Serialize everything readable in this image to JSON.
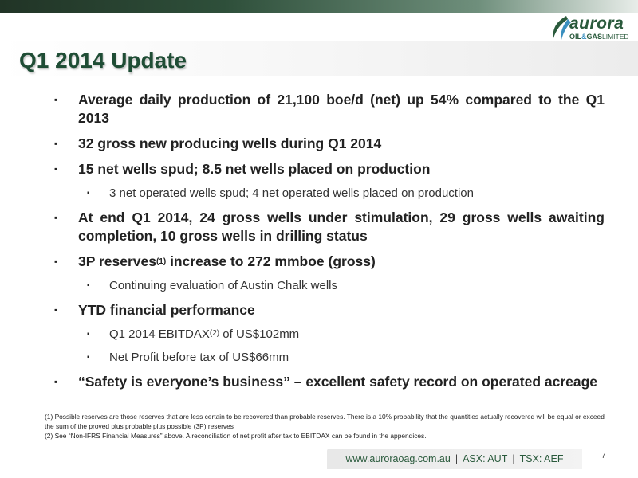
{
  "header": {
    "title": "Q1 2014 Update",
    "logo": {
      "word": "aurora",
      "sub_left": "OIL",
      "sub_amp": "&",
      "sub_mid": "GAS",
      "sub_right": "LIMITED"
    }
  },
  "bullets": [
    {
      "level": 1,
      "text": "Average daily production of 21,100 boe/d (net) up 54% compared to the Q1 2013"
    },
    {
      "level": 1,
      "text": "32 gross new producing wells during Q1 2014"
    },
    {
      "level": 1,
      "text": "15 net wells spud; 8.5 net wells placed on production"
    },
    {
      "level": 2,
      "text": "3 net operated wells spud; 4 net operated wells placed on production"
    },
    {
      "level": 1,
      "text": "At end Q1 2014, 24 gross wells under stimulation, 29 gross wells awaiting completion, 10 gross wells in drilling status"
    },
    {
      "level": 1,
      "pre": "3P reserves",
      "sup": "(1)",
      "post": " increase to 272 mmboe (gross)"
    },
    {
      "level": 2,
      "text": "Continuing evaluation of Austin Chalk wells"
    },
    {
      "level": 1,
      "text": "YTD financial performance"
    },
    {
      "level": 2,
      "pre": "Q1 2014 EBITDAX",
      "sup": "(2)",
      "post": " of US$102mm"
    },
    {
      "level": 2,
      "text": "Net Profit before tax of US$66mm"
    },
    {
      "level": 1,
      "text": "“Safety is everyone’s business” – excellent safety record on operated acreage"
    }
  ],
  "footnotes": [
    "(1) Possible reserves are those reserves that are less certain to be recovered than probable reserves. There is a 10% probability that the quantities actually recovered will be equal or exceed the sum of the proved plus probable plus possible (3P) reserves",
    "(2) See “Non-IFRS Financial Measures” above. A reconciliation of net profit after tax to EBITDAX can be found in the appendices."
  ],
  "footer": {
    "website": "www.auroraoag.com.au",
    "asx": "ASX: AUT",
    "tsx": "TSX: AEF",
    "separator": "|",
    "page_number": "7"
  },
  "bullet_symbol": "▪",
  "colors": {
    "brand_green": "#1f4d35",
    "top_bar": "#2e4f3a",
    "accent_blue": "#3a8fbf"
  }
}
